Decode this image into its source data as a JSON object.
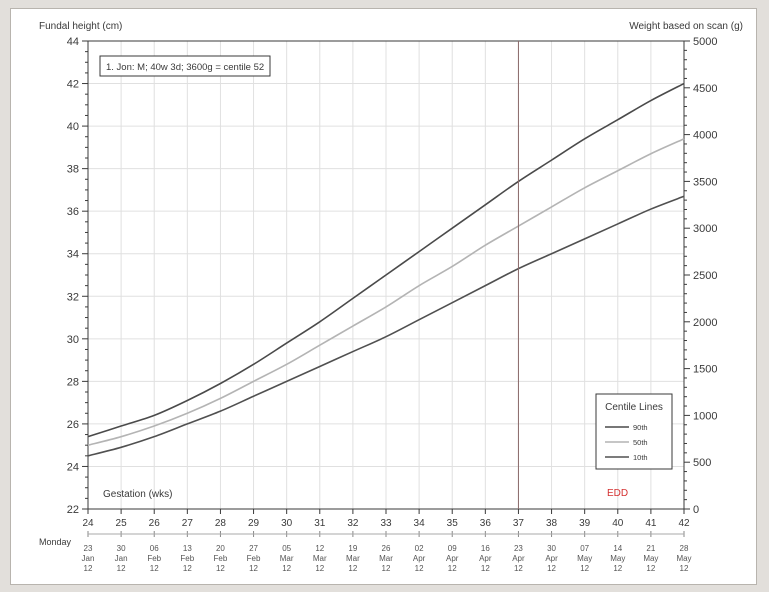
{
  "chart_data": {
    "type": "line",
    "ylabel": "Fundal height (cm)",
    "y2label": "Weight based on scan (g)",
    "xlabel": "Gestation (wks)",
    "annotation": "1. Jon: M; 40w 3d; 3600g = centile 52",
    "red_label": "EDD",
    "edd_week": 37,
    "xlim": [
      24,
      42
    ],
    "ylim": [
      22,
      44
    ],
    "y2lim": [
      0,
      5000
    ],
    "x_ticks": [
      24,
      25,
      26,
      27,
      28,
      29,
      30,
      31,
      32,
      33,
      34,
      35,
      36,
      37,
      38,
      39,
      40,
      41,
      42
    ],
    "y_ticks": [
      22,
      24,
      26,
      28,
      30,
      32,
      34,
      36,
      38,
      40,
      42,
      44
    ],
    "y2_ticks": [
      0,
      500,
      1000,
      1500,
      2000,
      2500,
      3000,
      3500,
      4000,
      4500,
      5000
    ],
    "date_row_label": "Monday",
    "dates": [
      [
        "23",
        "Jan",
        "12"
      ],
      [
        "30",
        "Jan",
        "12"
      ],
      [
        "06",
        "Feb",
        "12"
      ],
      [
        "13",
        "Feb",
        "12"
      ],
      [
        "20",
        "Feb",
        "12"
      ],
      [
        "27",
        "Feb",
        "12"
      ],
      [
        "05",
        "Mar",
        "12"
      ],
      [
        "12",
        "Mar",
        "12"
      ],
      [
        "19",
        "Mar",
        "12"
      ],
      [
        "26",
        "Mar",
        "12"
      ],
      [
        "02",
        "Apr",
        "12"
      ],
      [
        "09",
        "Apr",
        "12"
      ],
      [
        "16",
        "Apr",
        "12"
      ],
      [
        "23",
        "Apr",
        "12"
      ],
      [
        "30",
        "Apr",
        "12"
      ],
      [
        "07",
        "May",
        "12"
      ],
      [
        "14",
        "May",
        "12"
      ],
      [
        "21",
        "May",
        "12"
      ],
      [
        "28",
        "May",
        "12"
      ]
    ],
    "legend": {
      "title": "Centile Lines",
      "position": "lower-right",
      "entries": [
        "90th",
        "50th",
        "10th"
      ]
    },
    "series": [
      {
        "name": "90th",
        "color": "#4a4a4a",
        "x": [
          24,
          25,
          26,
          27,
          28,
          29,
          30,
          31,
          32,
          33,
          34,
          35,
          36,
          37,
          38,
          39,
          40,
          41,
          42
        ],
        "y": [
          25.4,
          25.9,
          26.4,
          27.1,
          27.9,
          28.8,
          29.8,
          30.8,
          31.9,
          33.0,
          34.1,
          35.2,
          36.3,
          37.4,
          38.4,
          39.4,
          40.3,
          41.2,
          42.0
        ]
      },
      {
        "name": "50th",
        "color": "#b4b4b4",
        "x": [
          24,
          25,
          26,
          27,
          28,
          29,
          30,
          31,
          32,
          33,
          34,
          35,
          36,
          37,
          38,
          39,
          40,
          41,
          42
        ],
        "y": [
          25.0,
          25.4,
          25.9,
          26.5,
          27.2,
          28.0,
          28.8,
          29.7,
          30.6,
          31.5,
          32.5,
          33.4,
          34.4,
          35.3,
          36.2,
          37.1,
          37.9,
          38.7,
          39.4
        ]
      },
      {
        "name": "10th",
        "color": "#505050",
        "x": [
          24,
          25,
          26,
          27,
          28,
          29,
          30,
          31,
          32,
          33,
          34,
          35,
          36,
          37,
          38,
          39,
          40,
          41,
          42
        ],
        "y": [
          24.5,
          24.9,
          25.4,
          26.0,
          26.6,
          27.3,
          28.0,
          28.7,
          29.4,
          30.1,
          30.9,
          31.7,
          32.5,
          33.3,
          34.0,
          34.7,
          35.4,
          36.1,
          36.7
        ]
      }
    ]
  }
}
